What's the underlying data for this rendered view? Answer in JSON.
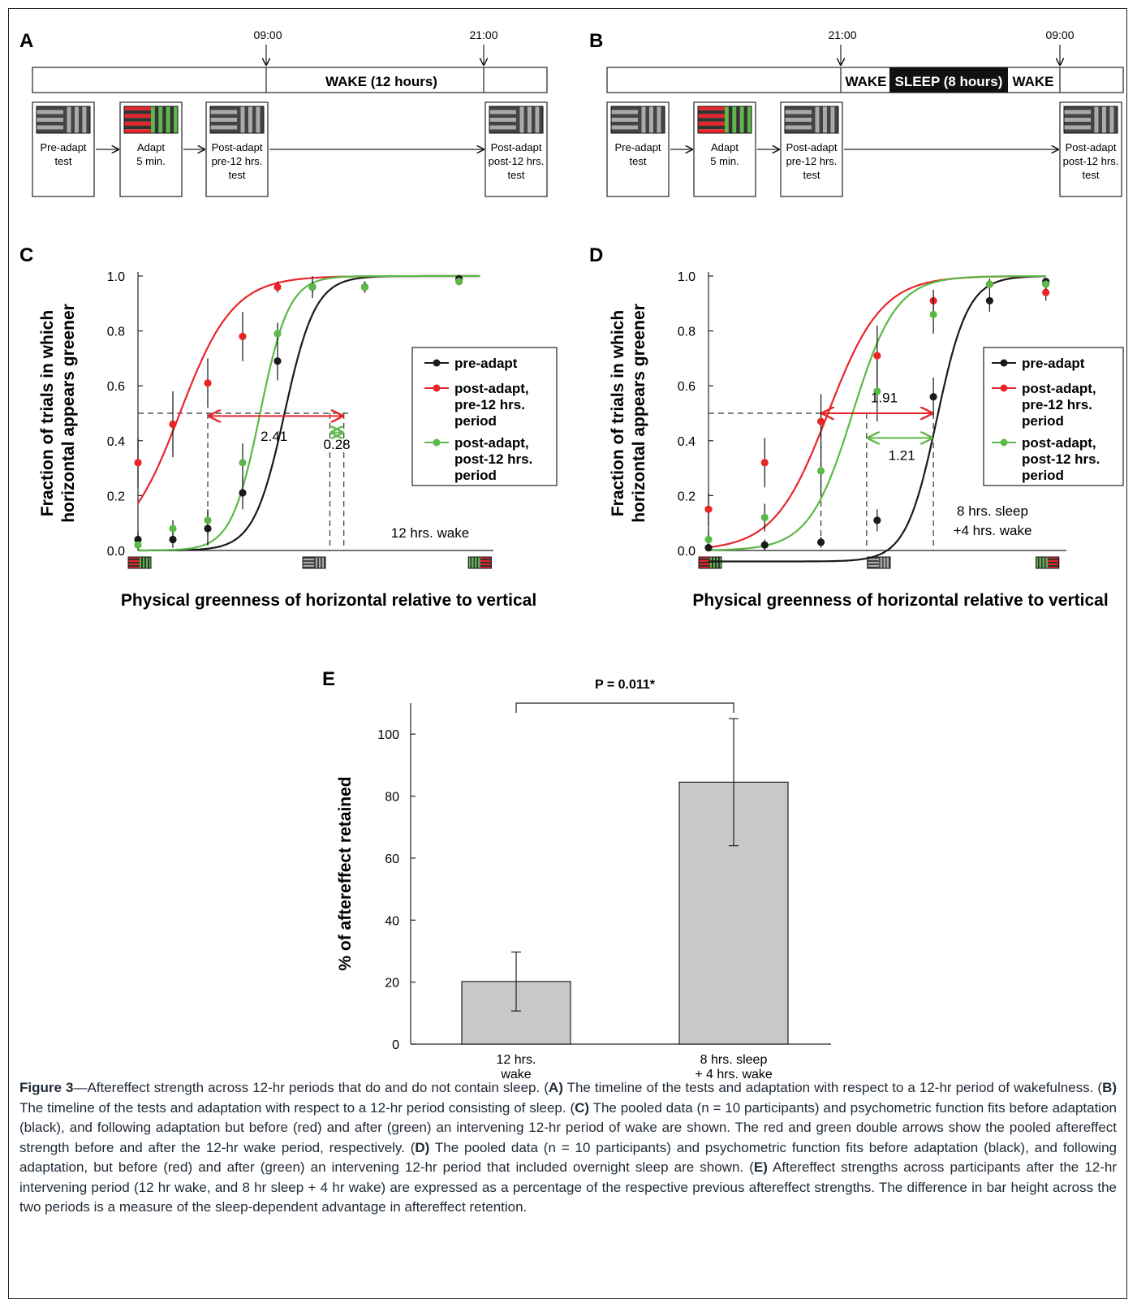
{
  "panel_letters": {
    "A": "A",
    "B": "B",
    "C": "C",
    "D": "D",
    "E": "E"
  },
  "timeline_A": {
    "times": [
      "09:00",
      "21:00"
    ],
    "bar_label": "WAKE (12 hours)",
    "boxes": [
      {
        "lines": [
          "Pre-adapt",
          "test"
        ],
        "stimulus": "gray"
      },
      {
        "lines": [
          "Adapt",
          "5 min."
        ],
        "stimulus": "red-green"
      },
      {
        "lines": [
          "Post-adapt",
          "pre-12 hrs.",
          "test"
        ],
        "stimulus": "gray"
      },
      {
        "lines": [
          "Post-adapt",
          "post-12 hrs.",
          "test"
        ],
        "stimulus": "gray"
      }
    ]
  },
  "timeline_B": {
    "times": [
      "21:00",
      "09:00"
    ],
    "bar_segments": [
      "WAKE",
      "SLEEP (8 hours)",
      "WAKE"
    ],
    "boxes": [
      {
        "lines": [
          "Pre-adapt",
          "test"
        ],
        "stimulus": "gray"
      },
      {
        "lines": [
          "Adapt",
          "5 min."
        ],
        "stimulus": "red-green"
      },
      {
        "lines": [
          "Post-adapt",
          "pre-12 hrs.",
          "test"
        ],
        "stimulus": "gray"
      },
      {
        "lines": [
          "Post-adapt",
          "post-12 hrs.",
          "test"
        ],
        "stimulus": "gray"
      }
    ]
  },
  "legend": [
    "pre-adapt",
    "post-adapt,|pre-12 hrs.|period",
    "post-adapt,|post-12 hrs.|period"
  ],
  "colors": {
    "pre": "#1a1a1a",
    "post_pre": "#e8262a",
    "post_post": "#5cb848",
    "bar": "#c8c8c8"
  },
  "chart_data": [
    {
      "panel": "C",
      "type": "scatter",
      "ylabel": "Fraction of trials in which|horizontal appears greener",
      "xlabel": "Physical greenness of horizontal relative to vertical",
      "ylim": [
        0,
        1
      ],
      "yticks": [
        "0.0",
        "0.2",
        "0.4",
        "0.6",
        "0.8",
        "1.0"
      ],
      "xlim": [
        0,
        10
      ],
      "series": [
        {
          "name": "pre-adapt",
          "x": [
            0,
            1,
            2,
            3,
            4,
            5,
            6.5,
            9.2
          ],
          "y": [
            0.04,
            0.04,
            0.08,
            0.21,
            0.69,
            0.96,
            0.96,
            0.99
          ],
          "err": [
            0.03,
            0.03,
            0.06,
            0.06,
            0.07,
            0.04,
            0.02,
            0.01
          ],
          "fit_mu": 4.2,
          "fit_s": 0.75,
          "fit_lo": 0.0,
          "fit_hi": 1.0
        },
        {
          "name": "post-adapt, pre-12 hrs. period",
          "x": [
            0,
            1,
            2,
            3,
            4,
            5,
            6.5,
            9.2
          ],
          "y": [
            0.32,
            0.46,
            0.61,
            0.78,
            0.96,
            0.96,
            0.96,
            0.98
          ],
          "err": [
            0.09,
            0.12,
            0.09,
            0.09,
            0.02,
            0.02,
            0.02,
            0.01
          ],
          "fit_mu": 1.2,
          "fit_s": 1.3,
          "fit_lo": 0.0,
          "fit_hi": 1.0
        },
        {
          "name": "post-adapt, post-12 hrs. period",
          "x": [
            0,
            1,
            2,
            3,
            4,
            5,
            6.5,
            9.2
          ],
          "y": [
            0.02,
            0.08,
            0.11,
            0.32,
            0.79,
            0.96,
            0.96,
            0.98
          ],
          "err": [
            0.02,
            0.03,
            0.04,
            0.07,
            0.04,
            0.02,
            0.02,
            0.01
          ],
          "fit_mu": 3.5,
          "fit_s": 0.7,
          "fit_lo": 0.0,
          "fit_hi": 1.0
        }
      ],
      "annotations": {
        "red_shift": "2.41",
        "green_shift": "0.28",
        "condition": "12 hrs. wake"
      }
    },
    {
      "panel": "D",
      "type": "scatter",
      "ylabel": "Fraction of trials in which|horizontal appears greener",
      "xlabel": "Physical greenness of horizontal relative to vertical",
      "ylim": [
        0,
        1
      ],
      "yticks": [
        "0.0",
        "0.2",
        "0.4",
        "0.6",
        "0.8",
        "1.0"
      ],
      "xlim": [
        0,
        10
      ],
      "series": [
        {
          "name": "pre-adapt",
          "x": [
            0,
            1.6,
            3.2,
            4.8,
            6.4,
            8.0,
            9.6
          ],
          "y": [
            0.01,
            0.02,
            0.03,
            0.11,
            0.56,
            0.91,
            0.98
          ],
          "err": [
            0.01,
            0.02,
            0.02,
            0.04,
            0.07,
            0.04,
            0.01
          ],
          "fit_mu": 6.5,
          "fit_s": 0.75,
          "fit_lo": -0.04,
          "fit_hi": 1.0
        },
        {
          "name": "post-adapt, pre-12 hrs. period",
          "x": [
            0,
            1.6,
            3.2,
            4.8,
            6.4,
            8.0,
            9.6
          ],
          "y": [
            0.15,
            0.32,
            0.47,
            0.71,
            0.91,
            0.97,
            0.94
          ],
          "err": [
            0.06,
            0.09,
            0.1,
            0.11,
            0.04,
            0.02,
            0.03
          ],
          "fit_mu": 3.4,
          "fit_s": 1.3,
          "fit_lo": 0.0,
          "fit_hi": 1.0
        },
        {
          "name": "post-adapt, post-12 hrs. period",
          "x": [
            0,
            1.6,
            3.2,
            4.8,
            6.4,
            8.0,
            9.6
          ],
          "y": [
            0.04,
            0.12,
            0.29,
            0.58,
            0.86,
            0.97,
            0.97
          ],
          "err": [
            0.03,
            0.05,
            0.09,
            0.11,
            0.07,
            0.02,
            0.02
          ],
          "fit_mu": 4.1,
          "fit_s": 1.05,
          "fit_lo": 0.0,
          "fit_hi": 1.0
        }
      ],
      "annotations": {
        "red_shift": "1.91",
        "green_shift": "1.21",
        "condition": "8 hrs. sleep|+4 hrs. wake"
      }
    },
    {
      "panel": "E",
      "type": "bar",
      "categories": [
        "12 hrs.|wake",
        "8 hrs. sleep|+ 4 hrs. wake"
      ],
      "values": [
        20.2,
        84.5
      ],
      "errors": [
        9.5,
        20.5
      ],
      "ylabel": "% of aftereffect retained",
      "ylim": [
        0,
        110
      ],
      "yticks": [
        "0",
        "20",
        "40",
        "60",
        "80",
        "100"
      ],
      "significance": "P = 0.011*"
    }
  ],
  "caption": {
    "title": "Figure 3",
    "intro": "—Aftereffect strength across 12-hr periods that do and do not contain sleep. (",
    "A_bold": "A)",
    "A_text": " The timeline of the tests and adaptation with respect to a 12-hr period of wakefulness. (",
    "B_bold": "B)",
    "B_text": " The timeline of the tests and adaptation with respect to a 12-hr period consisting of sleep. (",
    "C_bold": "C)",
    "C_text": " The pooled data (n = 10 participants) and psychometric function fits before adaptation (black), and following adaptation but before (red) and after (green) an intervening 12-hr period of wake are shown. The red and green double arrows show the pooled aftereffect strength before and after the 12-hr wake period, respectively. (",
    "D_bold": "D)",
    "D_text": " The pooled data (n = 10 participants) and psychometric function fits before adaptation (black), and following adaptation, but before (red) and after (green) an intervening 12-hr period that included overnight sleep are shown. (",
    "E_bold": "E)",
    "E_text": " Aftereffect strengths across participants after the 12-hr intervening period (12 hr wake, and 8 hr sleep + 4 hr wake) are expressed as a percentage of the respective previous aftereffect strengths. The difference in bar height across the two periods is a measure of the sleep-dependent advantage in aftereffect retention."
  }
}
